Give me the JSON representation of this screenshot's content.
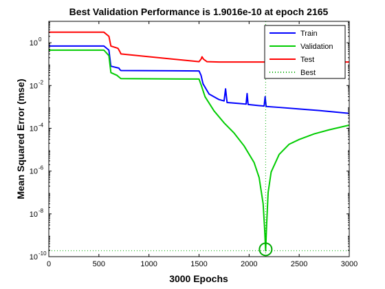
{
  "chart_data": {
    "type": "line",
    "title": "Best Validation Performance is 1.9016e-10 at epoch 2165",
    "xlabel": "3000 Epochs",
    "ylabel": "Mean Squared Error  (mse)",
    "xlim": [
      0,
      3000
    ],
    "ylim": [
      1e-10,
      10
    ],
    "yscale": "log",
    "grid": false,
    "legend_position": "top-right",
    "x_ticks": [
      0,
      500,
      1000,
      1500,
      2000,
      2500,
      3000
    ],
    "y_ticks": [
      {
        "base": "10",
        "exp": "0",
        "value": 1
      },
      {
        "base": "10",
        "exp": "-2",
        "value": 0.01
      },
      {
        "base": "10",
        "exp": "-4",
        "value": 0.0001
      },
      {
        "base": "10",
        "exp": "-6",
        "value": 1e-06
      },
      {
        "base": "10",
        "exp": "-8",
        "value": 1e-08
      },
      {
        "base": "10",
        "exp": "-10",
        "value": 1e-10
      }
    ],
    "series": [
      {
        "name": "Train",
        "color": "#0000ff",
        "style": "solid",
        "x": [
          0,
          550,
          600,
          620,
          700,
          710,
          720,
          1500,
          1520,
          1540,
          1600,
          1700,
          1750,
          1765,
          1780,
          1900,
          1970,
          1980,
          1990,
          2100,
          2150,
          2160,
          2170,
          2300,
          2500,
          2700,
          3000
        ],
        "y": [
          0.7,
          0.7,
          0.45,
          0.08,
          0.065,
          0.055,
          0.05,
          0.048,
          0.03,
          0.012,
          0.004,
          0.0022,
          0.0019,
          0.007,
          0.0016,
          0.00145,
          0.00135,
          0.0042,
          0.0013,
          0.00115,
          0.0011,
          0.003,
          0.00105,
          0.00095,
          0.0008,
          0.00068,
          0.0005
        ]
      },
      {
        "name": "Validation",
        "color": "#00cc00",
        "style": "solid",
        "x": [
          0,
          550,
          600,
          620,
          680,
          700,
          720,
          1500,
          1520,
          1560,
          1650,
          1750,
          1850,
          1950,
          2050,
          2100,
          2140,
          2155,
          2165,
          2175,
          2190,
          2220,
          2300,
          2400,
          2500,
          2650,
          2800,
          3000
        ],
        "y": [
          0.45,
          0.45,
          0.25,
          0.04,
          0.03,
          0.025,
          0.021,
          0.02,
          0.011,
          0.003,
          0.00065,
          0.00018,
          6e-05,
          1.5e-05,
          2.5e-06,
          5e-07,
          3e-08,
          2e-09,
          1.9016e-10,
          3e-09,
          1e-07,
          9e-07,
          6e-06,
          1.8e-05,
          3e-05,
          5.5e-05,
          8.5e-05,
          0.00014
        ]
      },
      {
        "name": "Test",
        "color": "#ff0000",
        "style": "solid",
        "x": [
          0,
          550,
          600,
          620,
          690,
          710,
          720,
          1500,
          1520,
          1530,
          1545,
          1580,
          1700,
          2000,
          2500,
          3000
        ],
        "y": [
          3.1,
          3.1,
          2.0,
          0.7,
          0.55,
          0.38,
          0.3,
          0.13,
          0.17,
          0.22,
          0.17,
          0.13,
          0.125,
          0.125,
          0.125,
          0.125
        ]
      },
      {
        "name": "Best",
        "color": "#00aa00",
        "style": "dotted",
        "x": [
          2165
        ],
        "y": [
          1.9016e-10
        ]
      }
    ],
    "best_point": {
      "x": 2165,
      "y": 1.9016e-10
    }
  }
}
